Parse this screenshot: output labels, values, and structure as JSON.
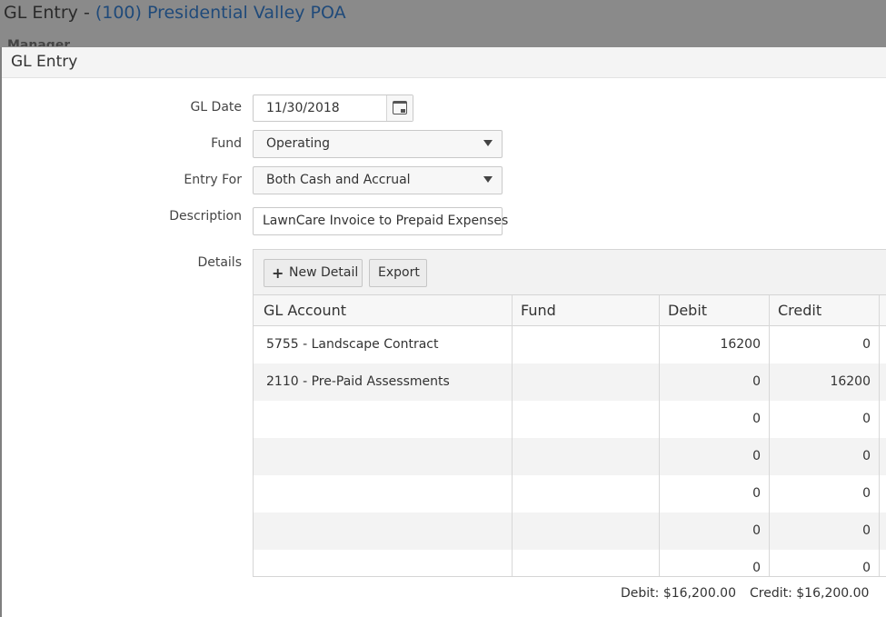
{
  "page": {
    "title_prefix": "GL Entry - ",
    "association": "(100) Presidential Valley POA",
    "behind_label": "Manager"
  },
  "dialog": {
    "title": "GL Entry",
    "labels": {
      "gl_date": "GL Date",
      "fund": "Fund",
      "entry_for": "Entry For",
      "description": "Description",
      "details": "Details"
    },
    "gl_date": "11/30/2018",
    "fund": "Operating",
    "entry_for": "Both Cash and Accrual",
    "description": "LawnCare Invoice to Prepaid Expenses",
    "buttons": {
      "new_detail": "New Detail",
      "export": "Export"
    },
    "columns": {
      "gl_account": "GL Account",
      "fund": "Fund",
      "debit": "Debit",
      "credit": "Credit"
    },
    "rows": [
      {
        "gl_account": "5755 - Landscape Contract",
        "fund": "",
        "debit": "16200",
        "credit": "0"
      },
      {
        "gl_account": "2110 - Pre-Paid Assessments",
        "fund": "",
        "debit": "0",
        "credit": "16200"
      },
      {
        "gl_account": "",
        "fund": "",
        "debit": "0",
        "credit": "0"
      },
      {
        "gl_account": "",
        "fund": "",
        "debit": "0",
        "credit": "0"
      },
      {
        "gl_account": "",
        "fund": "",
        "debit": "0",
        "credit": "0"
      },
      {
        "gl_account": "",
        "fund": "",
        "debit": "0",
        "credit": "0"
      },
      {
        "gl_account": "",
        "fund": "",
        "debit": "0",
        "credit": "0"
      }
    ],
    "totals": {
      "debit": "Debit: $16,200.00",
      "credit": "Credit: $16,200.00"
    }
  }
}
